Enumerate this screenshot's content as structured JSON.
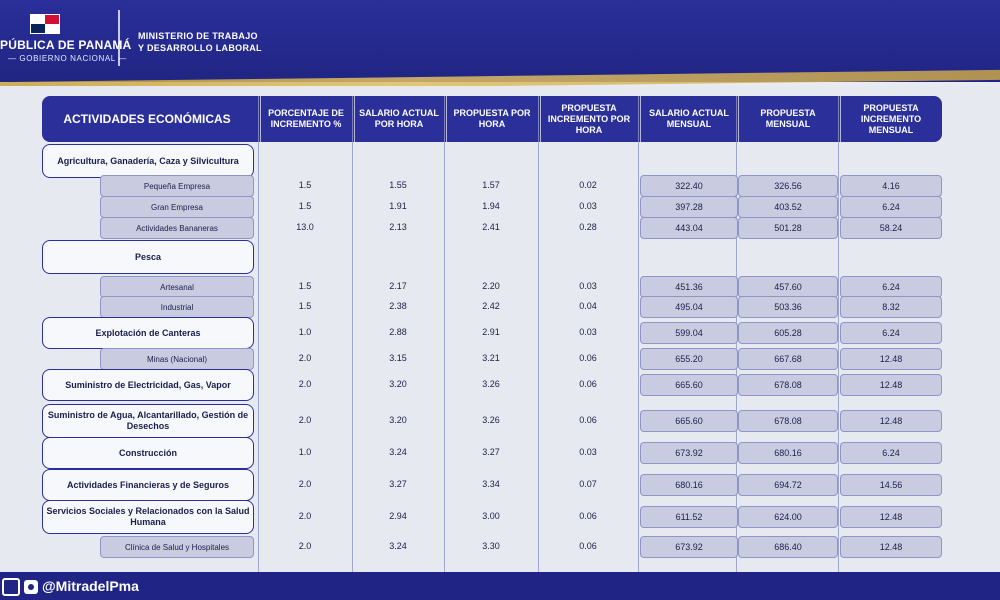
{
  "header": {
    "left_title": "PÚBLICA DE PANAMÁ",
    "left_subtitle": "— GOBIERNO NACIONAL —",
    "ministry_line1": "MINISTERIO DE TRABAJO",
    "ministry_line2": "Y DESARROLLO LABORAL"
  },
  "table": {
    "headers": [
      "ACTIVIDADES ECONÓMICAS",
      "PORCENTAJE DE INCREMENTO %",
      "SALARIO ACTUAL POR HORA",
      "PROPUESTA POR HORA",
      "PROPUESTA INCREMENTO POR HORA",
      "SALARIO ACTUAL MENSUAL",
      "PROPUESTA MENSUAL",
      "PROPUESTA INCREMENTO MENSUAL"
    ],
    "rows": [
      {
        "category": "Agricultura, Ganadería, Caza y Silvicultura"
      },
      {
        "sub": "Pequeña Empresa",
        "v": [
          "1.5",
          "1.55",
          "1.57",
          "0.02",
          "322.40",
          "326.56",
          "4.16"
        ]
      },
      {
        "sub": "Gran Empresa",
        "v": [
          "1.5",
          "1.91",
          "1.94",
          "0.03",
          "397.28",
          "403.52",
          "6.24"
        ]
      },
      {
        "sub": "Actividades Bananeras",
        "v": [
          "13.0",
          "2.13",
          "2.41",
          "0.28",
          "443.04",
          "501.28",
          "58.24"
        ]
      },
      {
        "category": "Pesca"
      },
      {
        "sub": "Artesanal",
        "v": [
          "1.5",
          "2.17",
          "2.20",
          "0.03",
          "451.36",
          "457.60",
          "6.24"
        ]
      },
      {
        "sub": "Industrial",
        "v": [
          "1.5",
          "2.38",
          "2.42",
          "0.04",
          "495.04",
          "503.36",
          "8.32"
        ]
      },
      {
        "category": "Explotación de Canteras",
        "v": [
          "1.0",
          "2.88",
          "2.91",
          "0.03",
          "599.04",
          "605.28",
          "6.24"
        ]
      },
      {
        "sub": "Minas (Nacional)",
        "v": [
          "2.0",
          "3.15",
          "3.21",
          "0.06",
          "655.20",
          "667.68",
          "12.48"
        ]
      },
      {
        "category": "Suministro de Electricidad, Gas, Vapor",
        "v": [
          "2.0",
          "3.20",
          "3.26",
          "0.06",
          "665.60",
          "678.08",
          "12.48"
        ]
      },
      {
        "category": "Suministro de Agua, Alcantarillado, Gestión de Desechos",
        "v": [
          "2.0",
          "3.20",
          "3.26",
          "0.06",
          "665.60",
          "678.08",
          "12.48"
        ]
      },
      {
        "category": "Construcción",
        "v": [
          "1.0",
          "3.24",
          "3.27",
          "0.03",
          "673.92",
          "680.16",
          "6.24"
        ]
      },
      {
        "category": "Actividades Financieras y de Seguros",
        "v": [
          "2.0",
          "3.27",
          "3.34",
          "0.07",
          "680.16",
          "694.72",
          "14.56"
        ]
      },
      {
        "category": "Servicios Sociales y Relacionados con la Salud Humana",
        "v": [
          "2.0",
          "2.94",
          "3.00",
          "0.06",
          "611.52",
          "624.00",
          "12.48"
        ]
      },
      {
        "sub": "Clínica de Salud y Hospitales",
        "v": [
          "2.0",
          "3.24",
          "3.30",
          "0.06",
          "673.92",
          "686.40",
          "12.48"
        ]
      }
    ]
  },
  "footer": {
    "handle": "@MitradelPma"
  }
}
